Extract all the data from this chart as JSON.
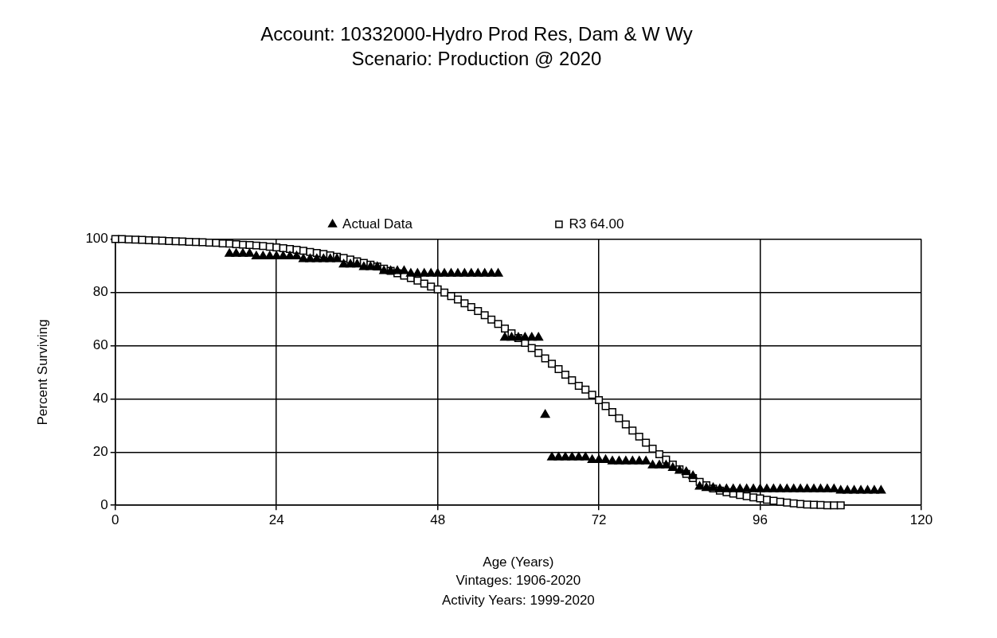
{
  "chart_data": {
    "type": "scatter",
    "title": "Account: 10332000-Hydro Prod Res, Dam & W Wy",
    "subtitle": "Scenario: Production @ 2020",
    "xlabel": "Age (Years)",
    "ylabel": "Percent Surviving",
    "annotations": [
      "Vintages: 1906-2020",
      "Activity Years: 1999-2020"
    ],
    "xlim": [
      0,
      120
    ],
    "xticks": [
      0,
      24,
      48,
      72,
      96,
      120
    ],
    "ylim": [
      0,
      100
    ],
    "yticks": [
      0,
      20,
      40,
      60,
      80,
      100
    ],
    "grid": true,
    "legend": "top",
    "series": [
      {
        "name": "Actual Data",
        "color": "#000000",
        "marker": "triangle",
        "x": [
          17,
          18,
          19,
          20,
          21,
          22,
          23,
          24,
          25,
          26,
          27,
          28,
          29,
          30,
          31,
          32,
          33,
          34,
          35,
          36,
          37,
          38,
          39,
          40,
          41,
          42,
          43,
          44,
          45,
          46,
          47,
          48,
          49,
          50,
          51,
          52,
          53,
          54,
          55,
          56,
          57,
          58,
          59,
          60,
          61,
          62,
          63,
          64,
          65,
          66,
          67,
          68,
          69,
          70,
          71,
          72,
          73,
          74,
          75,
          76,
          77,
          78,
          79,
          80,
          81,
          82,
          83,
          84,
          85,
          86,
          87,
          88,
          89,
          90,
          91,
          92,
          93,
          94,
          95,
          96,
          97,
          98,
          99,
          100,
          101,
          102,
          103,
          104,
          105,
          106,
          107,
          108,
          109,
          110,
          111,
          112,
          113,
          114
        ],
        "values": [
          94.5,
          94.5,
          94.5,
          94.5,
          93.5,
          93.5,
          93.5,
          93.5,
          93.5,
          93.5,
          93.5,
          92.5,
          92.5,
          92.5,
          92.5,
          92.5,
          92.5,
          90.5,
          90.5,
          90.5,
          89.5,
          89.5,
          89.5,
          88,
          88,
          88,
          88,
          87,
          87,
          87,
          87,
          87,
          87,
          87,
          87,
          87,
          87,
          87,
          87,
          87,
          87,
          63,
          63,
          63,
          63,
          63,
          63,
          34,
          18,
          18,
          18,
          18,
          18,
          18,
          17,
          17,
          17,
          16.5,
          16.5,
          16.5,
          16.5,
          16.5,
          16.5,
          15,
          15,
          15,
          14,
          13,
          12.5,
          11,
          7,
          6.5,
          6.5,
          6,
          6,
          6,
          6,
          6,
          6,
          6,
          6,
          6,
          6,
          6,
          6,
          6,
          6,
          6,
          6,
          6,
          6,
          5.5,
          5.5,
          5.5,
          5.5,
          5.5,
          5.5,
          5.5
        ]
      },
      {
        "name": "R3 64.00",
        "color": "#000000",
        "marker": "square",
        "x": [
          0,
          1,
          2,
          3,
          4,
          5,
          6,
          7,
          8,
          9,
          10,
          11,
          12,
          13,
          14,
          15,
          16,
          17,
          18,
          19,
          20,
          21,
          22,
          23,
          24,
          25,
          26,
          27,
          28,
          29,
          30,
          31,
          32,
          33,
          34,
          35,
          36,
          37,
          38,
          39,
          40,
          41,
          42,
          43,
          44,
          45,
          46,
          47,
          48,
          49,
          50,
          51,
          52,
          53,
          54,
          55,
          56,
          57,
          58,
          59,
          60,
          61,
          62,
          63,
          64,
          65,
          66,
          67,
          68,
          69,
          70,
          71,
          72,
          73,
          74,
          75,
          76,
          77,
          78,
          79,
          80,
          81,
          82,
          83,
          84,
          85,
          86,
          87,
          88,
          89,
          90,
          91,
          92,
          93,
          94,
          95,
          96,
          97,
          98,
          99,
          100,
          101,
          102,
          103,
          104,
          105,
          106,
          107,
          108
        ],
        "values": [
          100,
          100,
          99.9,
          99.8,
          99.7,
          99.6,
          99.5,
          99.4,
          99.3,
          99.2,
          99.1,
          99,
          98.9,
          98.8,
          98.7,
          98.6,
          98.4,
          98.3,
          98.1,
          97.9,
          97.8,
          97.6,
          97.4,
          97.1,
          96.9,
          96.6,
          96.3,
          96,
          95.6,
          95.2,
          94.8,
          94.4,
          93.9,
          93.4,
          92.9,
          92.3,
          91.7,
          91.1,
          90.4,
          89.7,
          88.9,
          88.1,
          87.2,
          86.3,
          85.4,
          84.4,
          83.3,
          82.2,
          81.1,
          79.9,
          78.6,
          77.3,
          75.9,
          74.5,
          73,
          71.4,
          69.8,
          68.1,
          66.4,
          64.6,
          62.8,
          61,
          59.1,
          57.2,
          55.2,
          53.2,
          51.2,
          49.1,
          47,
          44.9,
          43.5,
          41.5,
          39.5,
          37.3,
          35,
          32.7,
          30.4,
          28.1,
          25.8,
          23.5,
          21.3,
          19.2,
          17.2,
          15.3,
          13.5,
          11.8,
          10.2,
          8.8,
          7.5,
          6.3,
          5.5,
          4.9,
          4.4,
          3.9,
          3.4,
          3,
          2.6,
          2.1,
          1.7,
          1.3,
          1,
          0.7,
          0.5,
          0.3,
          0.2,
          0.1,
          0,
          0,
          0
        ]
      }
    ]
  }
}
